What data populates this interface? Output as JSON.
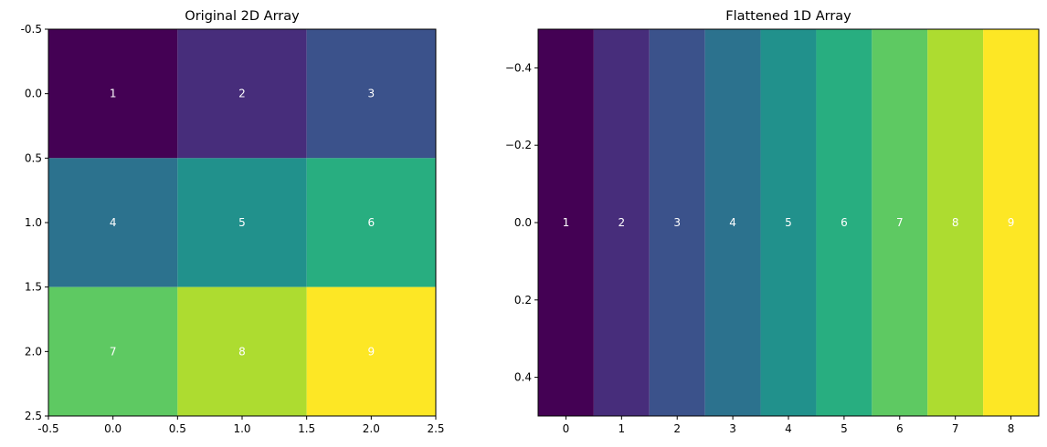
{
  "chart_data": [
    {
      "type": "heatmap",
      "title": "Original 2D Array",
      "xlabel": "",
      "ylabel": "",
      "values": [
        [
          1,
          2,
          3
        ],
        [
          4,
          5,
          6
        ],
        [
          7,
          8,
          9
        ]
      ],
      "xlim": [
        -0.5,
        2.5
      ],
      "ylim": [
        2.5,
        -0.5
      ],
      "xticks": [
        "-0.5",
        "0.0",
        "0.5",
        "1.0",
        "1.5",
        "2.0",
        "2.5"
      ],
      "yticks": [
        "-0.5",
        "0.0",
        "0.5",
        "1.0",
        "1.5",
        "2.0",
        "2.5"
      ],
      "colormap": "viridis",
      "grid": false
    },
    {
      "type": "heatmap",
      "title": "Flattened 1D Array",
      "xlabel": "",
      "ylabel": "",
      "values": [
        [
          1,
          2,
          3,
          4,
          5,
          6,
          7,
          8,
          9
        ]
      ],
      "xlim": [
        -0.5,
        8.5
      ],
      "ylim": [
        0.5,
        -0.5
      ],
      "xticks": [
        "0",
        "1",
        "2",
        "3",
        "4",
        "5",
        "6",
        "7",
        "8"
      ],
      "yticks": [
        "−0.4",
        "−0.2",
        "0.0",
        "0.2",
        "0.4"
      ],
      "colormap": "viridis",
      "grid": false
    }
  ],
  "colors": {
    "v1": "#440154",
    "v2": "#472d7b",
    "v3": "#3b528b",
    "v4": "#2c728e",
    "v5": "#21918c",
    "v6": "#28ae80",
    "v7": "#5ec962",
    "v8": "#addc30",
    "v9": "#fde725",
    "label_text": "#ffffff"
  }
}
